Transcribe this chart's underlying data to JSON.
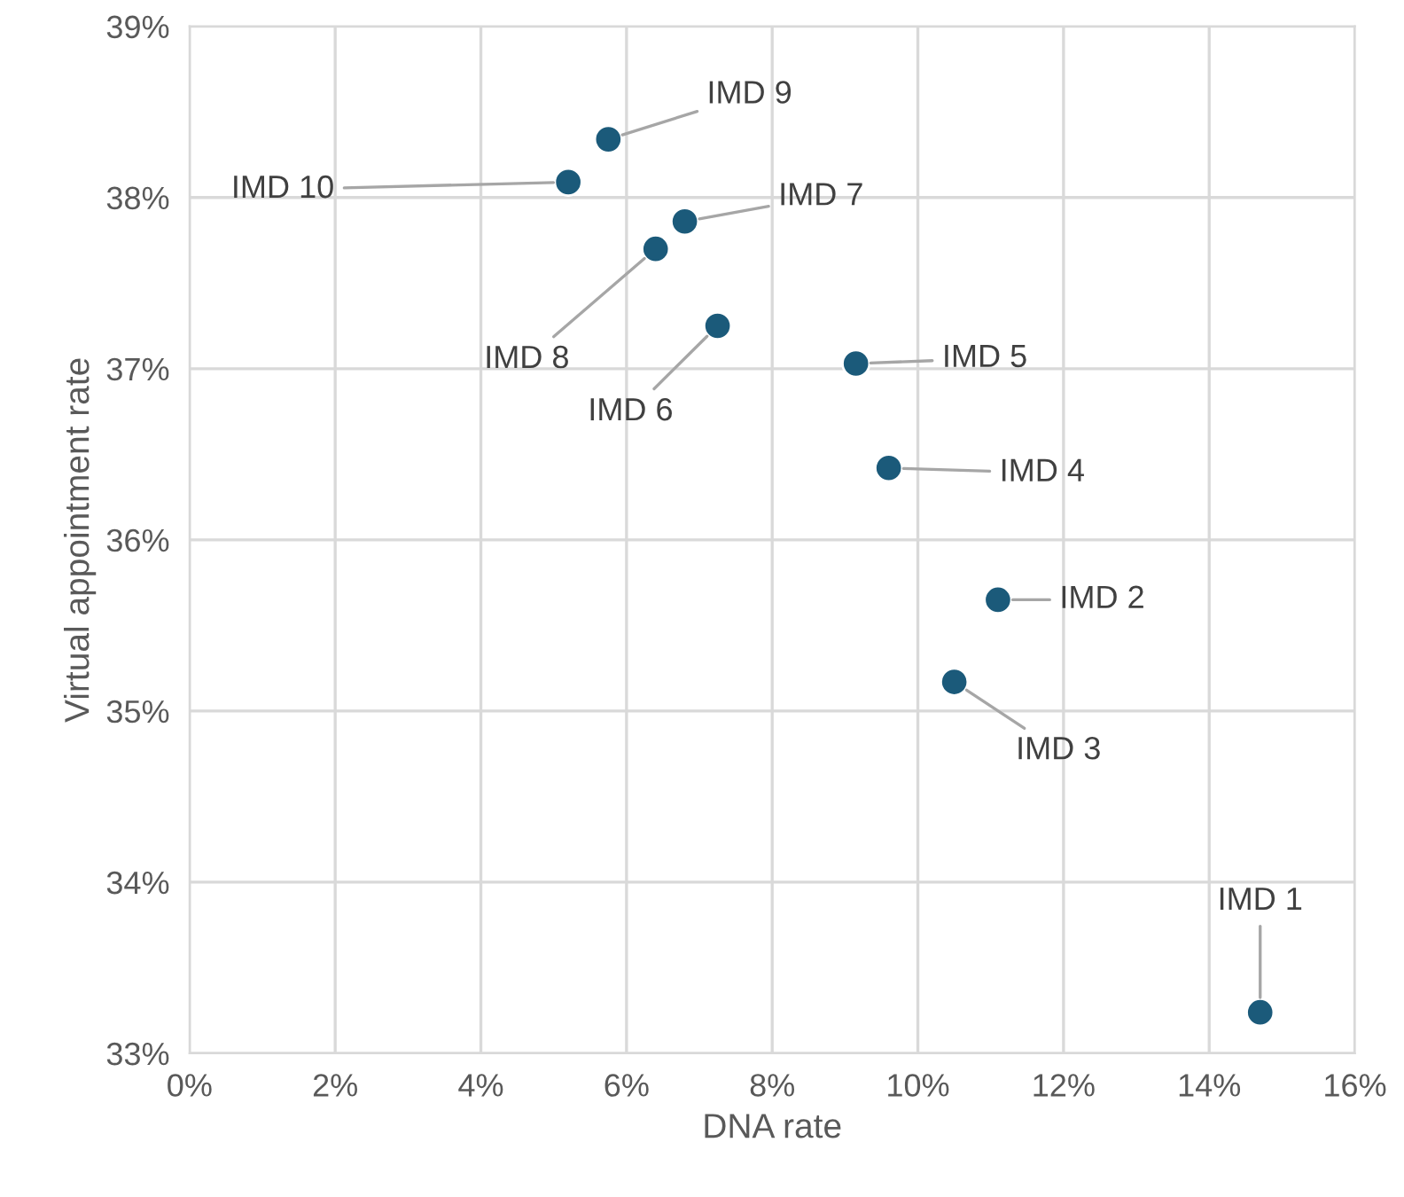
{
  "chart_data": {
    "type": "scatter",
    "xlabel": "DNA rate",
    "ylabel": "Virtual appointment rate",
    "x": [
      14.7,
      11.1,
      10.5,
      9.6,
      9.15,
      7.25,
      6.8,
      6.4,
      5.75,
      5.2
    ],
    "series": [
      {
        "color": "#1b5a7a",
        "values": [
          33.24,
          35.65,
          35.17,
          36.42,
          37.03,
          37.25,
          37.86,
          37.7,
          38.34,
          38.09
        ]
      }
    ],
    "annotations": [
      {
        "text": "IMD 1",
        "x": 14.7,
        "y": 33.24
      },
      {
        "text": "IMD 2",
        "x": 11.1,
        "y": 35.65
      },
      {
        "text": "IMD 3",
        "x": 10.5,
        "y": 35.17
      },
      {
        "text": "IMD 4",
        "x": 9.6,
        "y": 36.42
      },
      {
        "text": "IMD 5",
        "x": 9.15,
        "y": 37.03
      },
      {
        "text": "IMD 6",
        "x": 7.25,
        "y": 37.25
      },
      {
        "text": "IMD 7",
        "x": 6.8,
        "y": 37.86
      },
      {
        "text": "IMD 8",
        "x": 6.4,
        "y": 37.7
      },
      {
        "text": "IMD 9",
        "x": 5.75,
        "y": 38.34
      },
      {
        "text": "IMD 10",
        "x": 5.2,
        "y": 38.09
      }
    ],
    "xlim": [
      0,
      16
    ],
    "xticks": [
      {
        "value": 0,
        "label": "0%"
      },
      {
        "value": 2,
        "label": "2%"
      },
      {
        "value": 4,
        "label": "4%"
      },
      {
        "value": 6,
        "label": "6%"
      },
      {
        "value": 8,
        "label": "8%"
      },
      {
        "value": 10,
        "label": "10%"
      },
      {
        "value": 12,
        "label": "12%"
      },
      {
        "value": 14,
        "label": "14%"
      },
      {
        "value": 16,
        "label": "16%"
      }
    ],
    "ylim": [
      33,
      39
    ],
    "yticks": [
      {
        "value": 33,
        "label": "33%"
      },
      {
        "value": 34,
        "label": "34%"
      },
      {
        "value": 35,
        "label": "35%"
      },
      {
        "value": 36,
        "label": "36%"
      },
      {
        "value": 37,
        "label": "37%"
      },
      {
        "value": 38,
        "label": "38%"
      },
      {
        "value": 39,
        "label": "39%"
      }
    ],
    "grid": true,
    "marker": "circle",
    "legend": false
  }
}
